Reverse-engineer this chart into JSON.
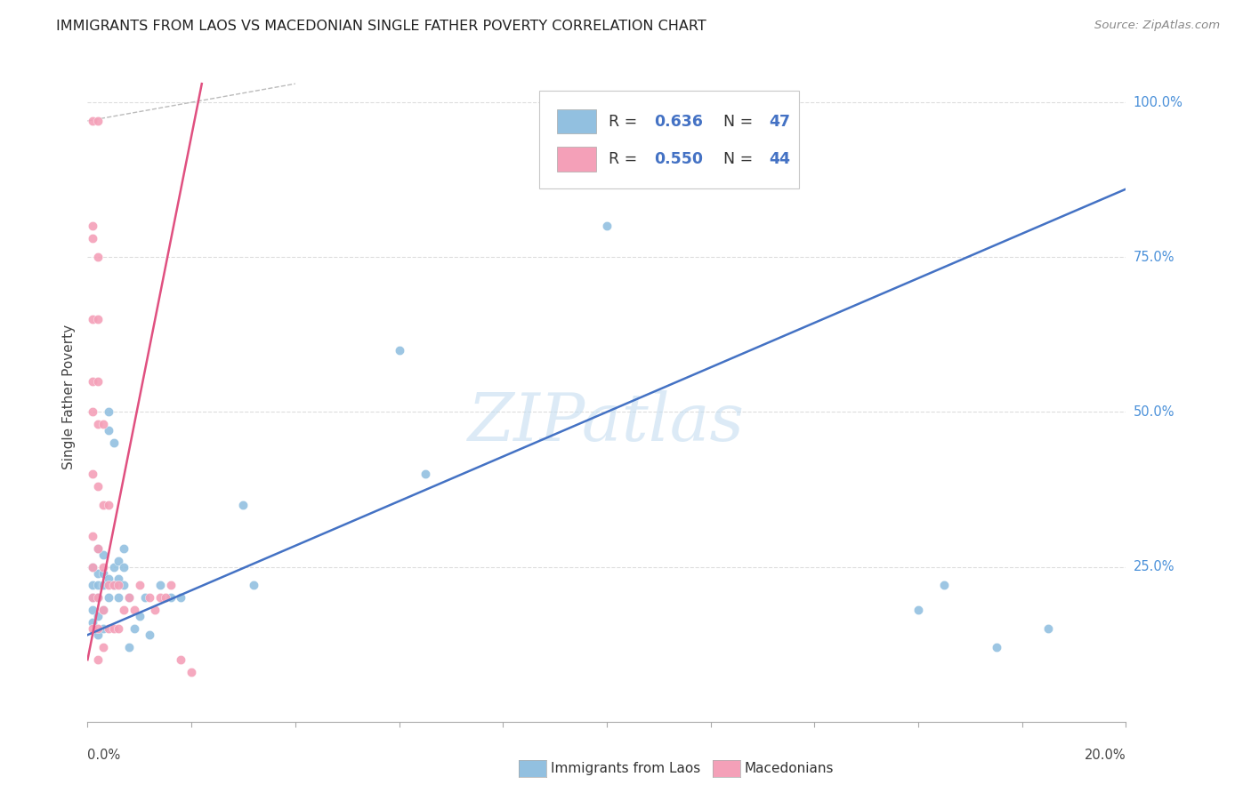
{
  "title": "IMMIGRANTS FROM LAOS VS MACEDONIAN SINGLE FATHER POVERTY CORRELATION CHART",
  "source": "Source: ZipAtlas.com",
  "ylabel": "Single Father Poverty",
  "watermark": "ZIPatlas",
  "laos_color": "#92c0e0",
  "mac_color": "#f4a0b8",
  "laos_line_color": "#4472c4",
  "mac_line_color": "#e05080",
  "ref_line_color": "#bbbbbb",
  "background_color": "#ffffff",
  "grid_color": "#dddddd",
  "right_label_color": "#4a90d9",
  "laos_x": [
    0.001,
    0.001,
    0.001,
    0.001,
    0.001,
    0.002,
    0.002,
    0.002,
    0.002,
    0.002,
    0.002,
    0.003,
    0.003,
    0.003,
    0.003,
    0.003,
    0.004,
    0.004,
    0.004,
    0.004,
    0.005,
    0.005,
    0.005,
    0.006,
    0.006,
    0.006,
    0.007,
    0.007,
    0.007,
    0.008,
    0.008,
    0.009,
    0.01,
    0.011,
    0.012,
    0.014,
    0.016,
    0.018,
    0.03,
    0.032,
    0.06,
    0.065,
    0.1,
    0.16,
    0.165,
    0.175,
    0.185
  ],
  "laos_y": [
    0.16,
    0.18,
    0.2,
    0.22,
    0.25,
    0.14,
    0.17,
    0.2,
    0.22,
    0.24,
    0.28,
    0.15,
    0.18,
    0.22,
    0.24,
    0.27,
    0.2,
    0.23,
    0.47,
    0.5,
    0.22,
    0.25,
    0.45,
    0.2,
    0.23,
    0.26,
    0.22,
    0.25,
    0.28,
    0.12,
    0.2,
    0.15,
    0.17,
    0.2,
    0.14,
    0.22,
    0.2,
    0.2,
    0.35,
    0.22,
    0.6,
    0.4,
    0.8,
    0.18,
    0.22,
    0.12,
    0.15
  ],
  "mac_x": [
    0.001,
    0.001,
    0.001,
    0.001,
    0.001,
    0.001,
    0.001,
    0.001,
    0.001,
    0.001,
    0.001,
    0.002,
    0.002,
    0.002,
    0.002,
    0.002,
    0.002,
    0.002,
    0.002,
    0.002,
    0.002,
    0.003,
    0.003,
    0.003,
    0.003,
    0.003,
    0.004,
    0.004,
    0.004,
    0.005,
    0.005,
    0.006,
    0.006,
    0.007,
    0.008,
    0.009,
    0.01,
    0.012,
    0.013,
    0.014,
    0.015,
    0.016,
    0.018,
    0.02
  ],
  "mac_y": [
    0.15,
    0.2,
    0.25,
    0.3,
    0.4,
    0.5,
    0.55,
    0.65,
    0.78,
    0.8,
    0.97,
    0.1,
    0.15,
    0.2,
    0.28,
    0.38,
    0.48,
    0.55,
    0.65,
    0.75,
    0.97,
    0.12,
    0.18,
    0.25,
    0.35,
    0.48,
    0.15,
    0.22,
    0.35,
    0.15,
    0.22,
    0.15,
    0.22,
    0.18,
    0.2,
    0.18,
    0.22,
    0.2,
    0.18,
    0.2,
    0.2,
    0.22,
    0.1,
    0.08
  ],
  "laos_line_x0": 0.0,
  "laos_line_y0": 0.14,
  "laos_line_x1": 0.2,
  "laos_line_y1": 0.86,
  "mac_line_x0": 0.0,
  "mac_line_y0": 0.1,
  "mac_line_x1": 0.022,
  "mac_line_y1": 1.03,
  "ref_line_x0": 0.0,
  "ref_line_y0": 0.97,
  "ref_line_x1": 0.04,
  "ref_line_y1": 1.03,
  "xlim": [
    0,
    0.2
  ],
  "ylim": [
    0,
    1.05
  ],
  "yticks": [
    0.25,
    0.5,
    0.75,
    1.0
  ],
  "ytick_labels": [
    "25.0%",
    "50.0%",
    "75.0%",
    "100.0%"
  ],
  "legend_R1": "R = 0.636",
  "legend_N1": "N = 47",
  "legend_R2": "R = 0.550",
  "legend_N2": "N = 44"
}
